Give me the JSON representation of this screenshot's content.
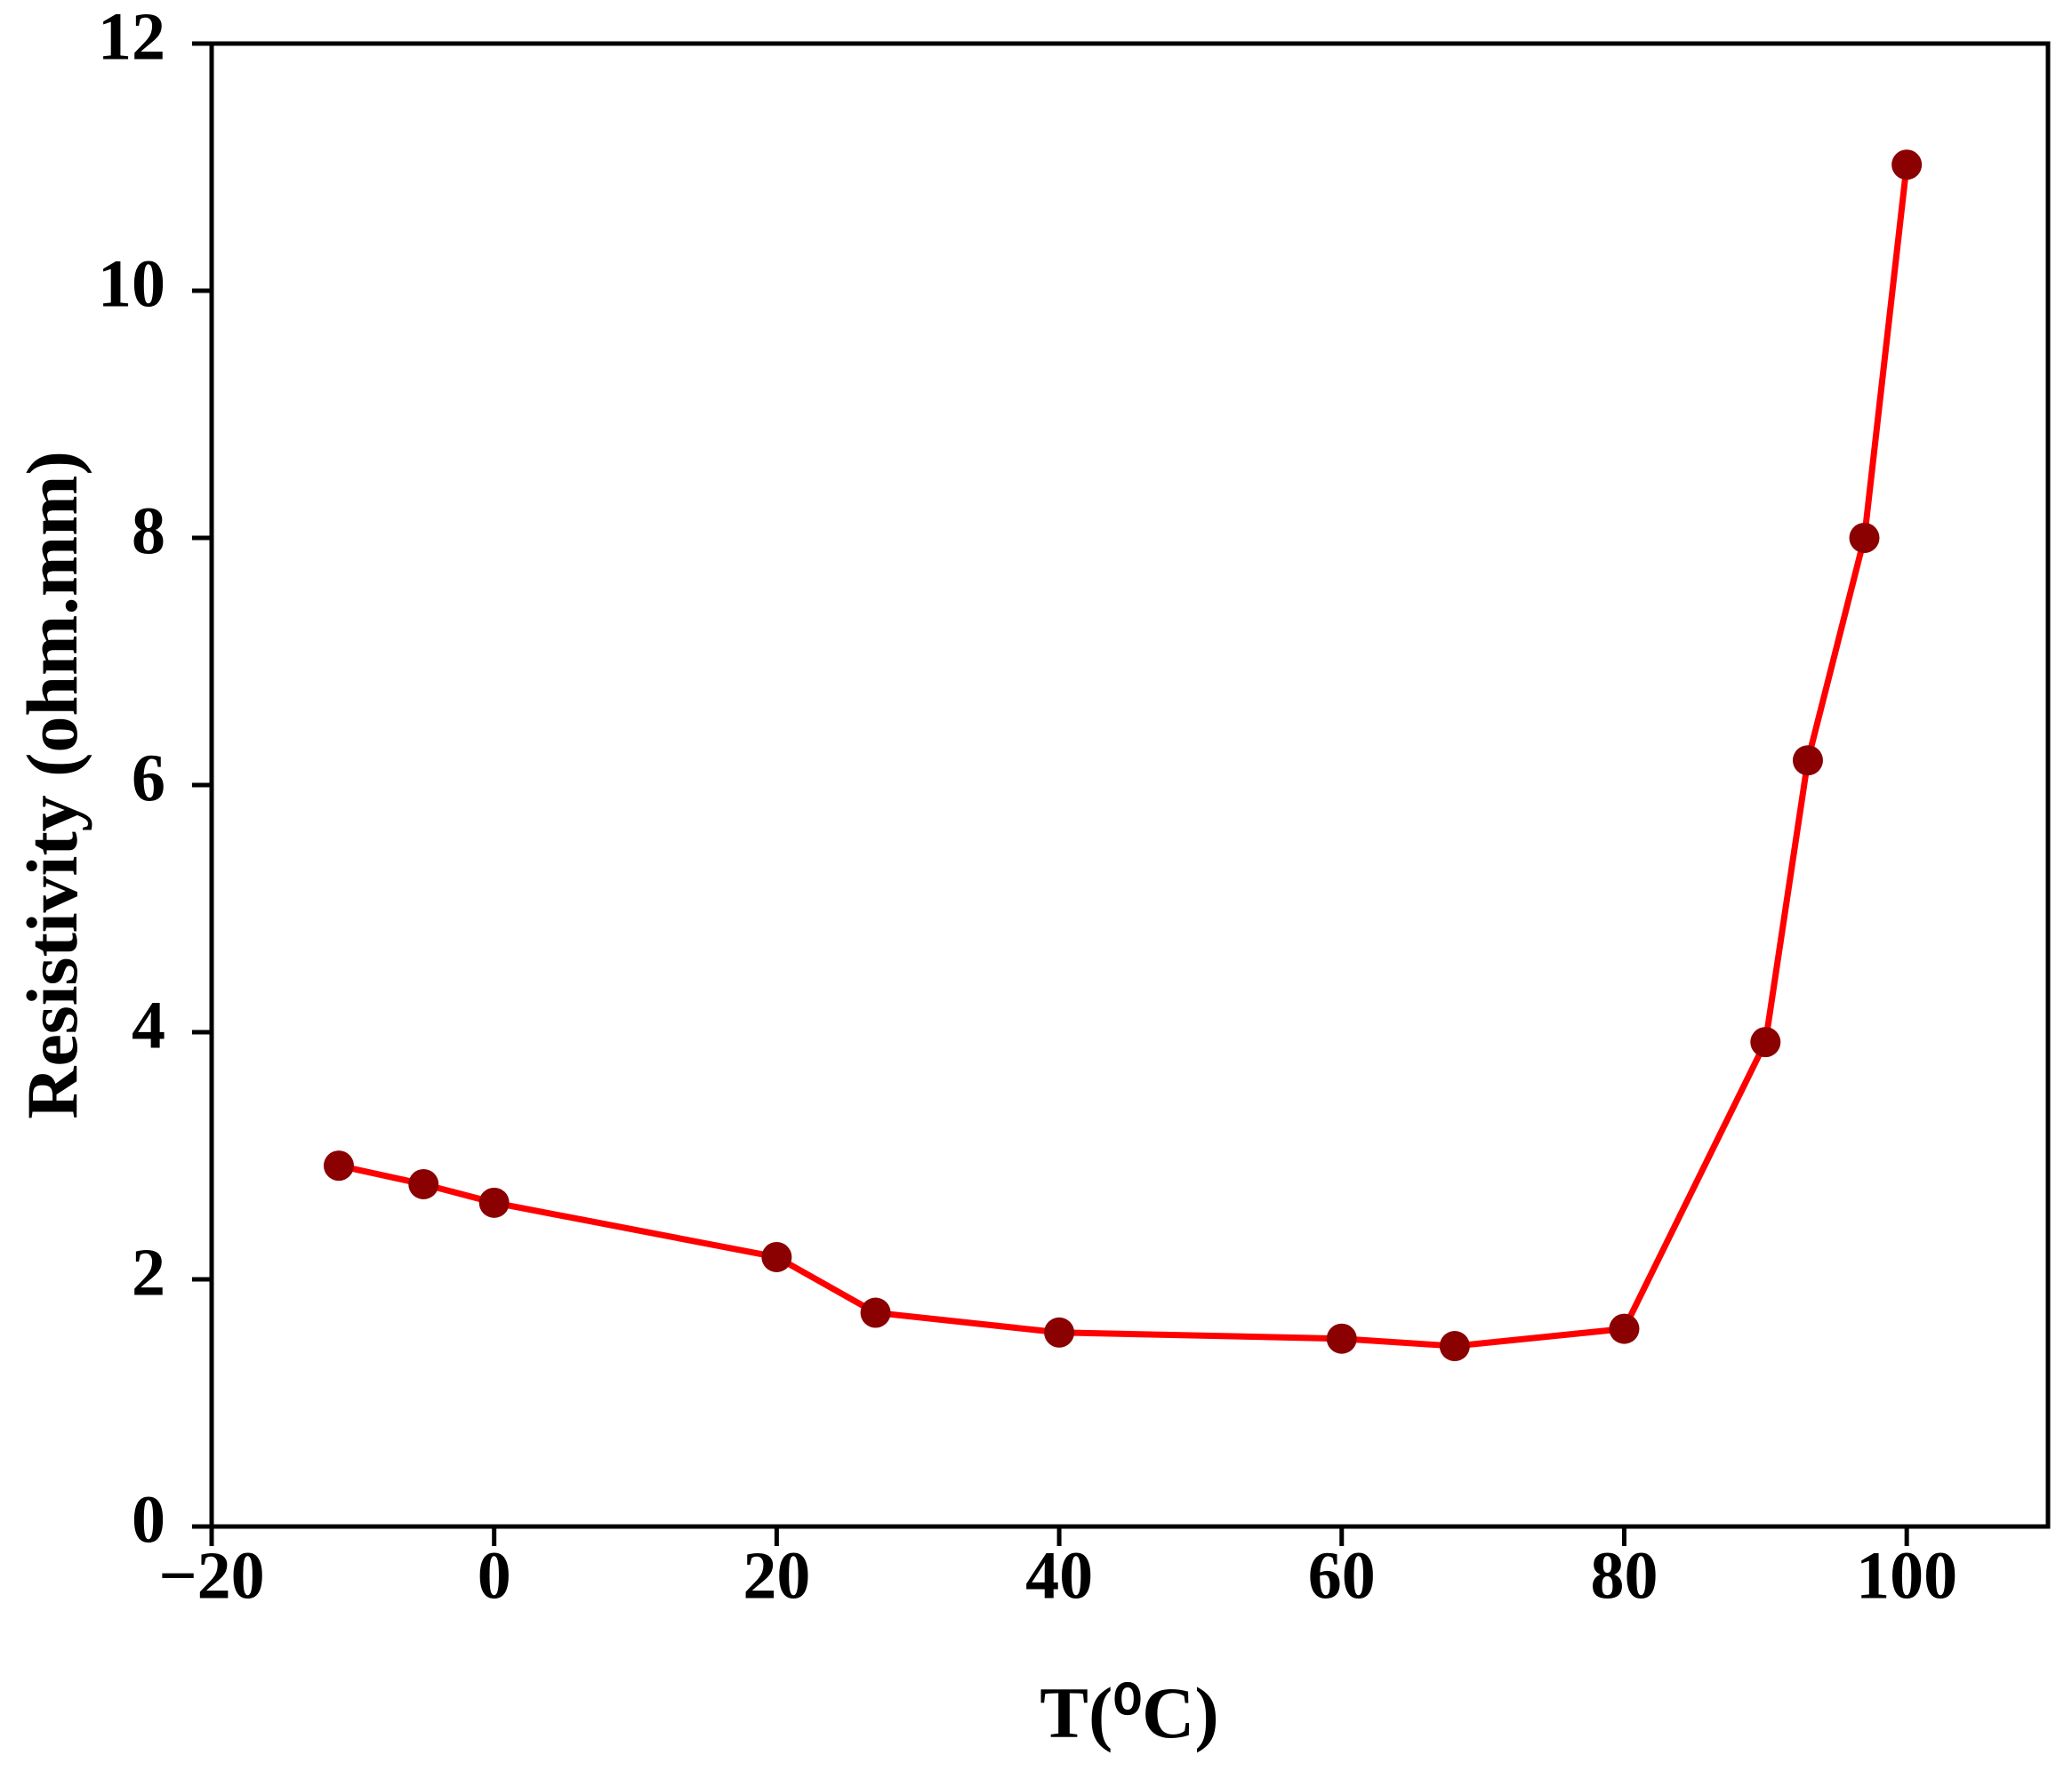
{
  "chart_data": {
    "type": "line",
    "x_label": "T(⁰C)",
    "y_label": "Resistivity (ohm.mm)",
    "x": [
      -11,
      -5,
      0,
      20,
      27,
      40,
      60,
      68,
      80,
      90,
      93,
      97,
      100
    ],
    "series": [
      {
        "color": "#ff0000",
        "marker_color": "#8b0000",
        "values": [
          2.92,
          2.77,
          2.62,
          2.18,
          1.73,
          1.57,
          1.52,
          1.46,
          1.6,
          3.92,
          6.2,
          8.0,
          11.02
        ]
      }
    ],
    "xlim": [
      -20,
      110
    ],
    "xticks": [
      {
        "value": -20,
        "label": "−20"
      },
      0,
      20,
      40,
      60,
      80,
      100
    ],
    "ylim": [
      0,
      12
    ],
    "yticks": [
      0,
      2,
      4,
      6,
      8,
      10,
      12
    ]
  }
}
